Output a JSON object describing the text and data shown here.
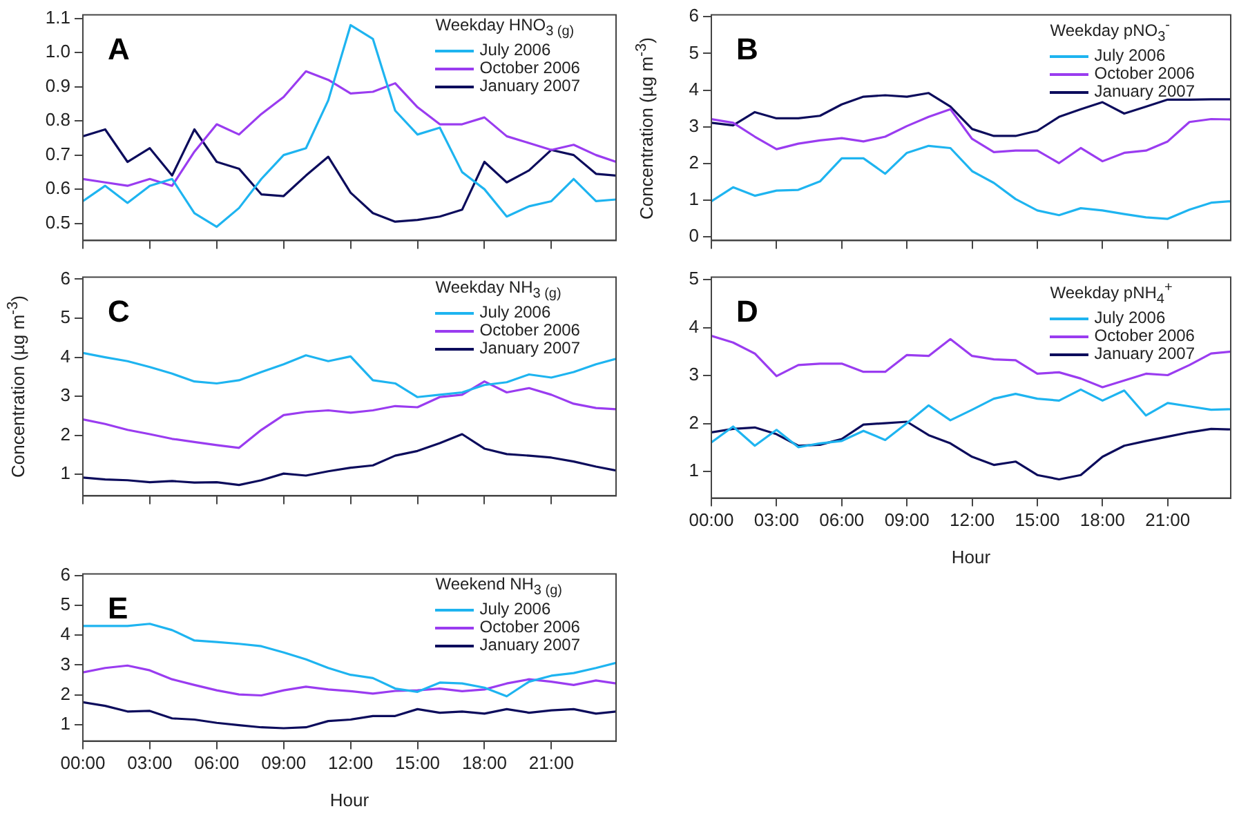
{
  "chart_data": [
    {
      "type": "line",
      "title": "A",
      "legend_title": "Weekday HNO$_{3 (g)}$",
      "legend": "top right",
      "marker": "none",
      "line_style": "solid",
      "grid": false,
      "tick_labels": "y",
      "x": [
        0,
        1,
        2,
        3,
        4,
        5,
        6,
        7,
        8,
        9,
        10,
        11,
        12,
        13,
        14,
        15,
        16,
        17,
        18,
        19,
        20,
        21,
        22,
        23,
        23.9
      ],
      "xlim": [
        0,
        23.9
      ],
      "xticks": [
        {
          "value": 0,
          "label": null
        },
        {
          "value": 3,
          "label": null
        },
        {
          "value": 6,
          "label": null
        },
        {
          "value": 9,
          "label": null
        },
        {
          "value": 12,
          "label": null
        },
        {
          "value": 15,
          "label": null
        },
        {
          "value": 18,
          "label": null
        },
        {
          "value": 21,
          "label": null
        }
      ],
      "ylim": [
        0.45,
        1.11
      ],
      "yticks": [
        0.5,
        0.6,
        0.7,
        0.8,
        0.9,
        {
          "value": 1,
          "label": "1.0"
        },
        1.1
      ],
      "series": [
        {
          "name": "July 2006",
          "color": "#1eb4f0",
          "values": [
            0.565,
            0.61,
            0.56,
            0.61,
            0.63,
            0.53,
            0.49,
            0.545,
            0.63,
            0.7,
            0.72,
            0.86,
            1.08,
            1.04,
            0.83,
            0.76,
            0.78,
            0.65,
            0.6,
            0.52,
            0.55,
            0.565,
            0.63,
            0.565,
            0.57
          ]
        },
        {
          "name": "October 2006",
          "color": "#9a3cf0",
          "values": [
            0.63,
            0.62,
            0.61,
            0.63,
            0.61,
            0.71,
            0.79,
            0.76,
            0.82,
            0.87,
            0.945,
            0.92,
            0.88,
            0.885,
            0.91,
            0.84,
            0.79,
            0.79,
            0.81,
            0.755,
            0.735,
            0.715,
            0.73,
            0.7,
            0.68
          ]
        },
        {
          "name": "January 2007",
          "color": "#0c0c5c",
          "values": [
            0.755,
            0.775,
            0.68,
            0.72,
            0.64,
            0.775,
            0.68,
            0.66,
            0.585,
            0.58,
            0.64,
            0.695,
            0.59,
            0.53,
            0.505,
            0.51,
            0.52,
            0.54,
            0.68,
            0.62,
            0.655,
            0.715,
            0.7,
            0.645,
            0.64
          ]
        }
      ]
    },
    {
      "type": "line",
      "title": "B",
      "legend_title": "Weekday pNO$_{3}$$^{-}$",
      "ylabel": "Concentration (µg m$^{-3}$)",
      "legend": "top right",
      "marker": "none",
      "line_style": "solid",
      "grid": false,
      "tick_labels": "y",
      "x": [
        0,
        1,
        2,
        3,
        4,
        5,
        6,
        7,
        8,
        9,
        10,
        11,
        12,
        13,
        14,
        15,
        16,
        17,
        18,
        19,
        20,
        21,
        22,
        23,
        23.9
      ],
      "xlim": [
        0,
        23.9
      ],
      "xticks": [
        {
          "value": 0,
          "label": null
        },
        {
          "value": 3,
          "label": null
        },
        {
          "value": 6,
          "label": null
        },
        {
          "value": 9,
          "label": null
        },
        {
          "value": 12,
          "label": null
        },
        {
          "value": 15,
          "label": null
        },
        {
          "value": 18,
          "label": null
        },
        {
          "value": 21,
          "label": null
        }
      ],
      "ylim": [
        -0.1,
        6.05
      ],
      "yticks": [
        0,
        1,
        2,
        3,
        4,
        5,
        6
      ],
      "series": [
        {
          "name": "July 2006",
          "color": "#1eb4f0",
          "values": [
            0.97,
            1.35,
            1.12,
            1.26,
            1.28,
            1.51,
            2.14,
            2.14,
            1.72,
            2.29,
            2.48,
            2.42,
            1.79,
            1.47,
            1.03,
            0.72,
            0.59,
            0.78,
            0.72,
            0.62,
            0.53,
            0.49,
            0.74,
            0.93,
            0.97
          ]
        },
        {
          "name": "October 2006",
          "color": "#9a3cf0",
          "values": [
            3.21,
            3.11,
            2.73,
            2.39,
            2.54,
            2.63,
            2.69,
            2.6,
            2.73,
            3.02,
            3.27,
            3.48,
            2.67,
            2.31,
            2.35,
            2.35,
            2.01,
            2.42,
            2.06,
            2.29,
            2.35,
            2.6,
            3.13,
            3.21,
            3.2
          ]
        },
        {
          "name": "January 2007",
          "color": "#0c0c5c",
          "values": [
            3.11,
            3.04,
            3.4,
            3.23,
            3.23,
            3.3,
            3.61,
            3.82,
            3.86,
            3.82,
            3.92,
            3.55,
            2.94,
            2.75,
            2.75,
            2.89,
            3.27,
            3.48,
            3.67,
            3.36,
            3.55,
            3.74,
            3.74,
            3.75,
            3.75
          ]
        }
      ]
    },
    {
      "type": "line",
      "title": "C",
      "legend_title": "Weekday NH$_{3 (g)}$",
      "ylabel": "Concentration (µg m$^{-3}$)",
      "legend": "top right",
      "marker": "none",
      "line_style": "solid",
      "grid": false,
      "tick_labels": "y",
      "x": [
        0,
        1,
        2,
        3,
        4,
        5,
        6,
        7,
        8,
        9,
        10,
        11,
        12,
        13,
        14,
        15,
        16,
        17,
        18,
        19,
        20,
        21,
        22,
        23,
        23.9
      ],
      "xlim": [
        0,
        23.9
      ],
      "xticks": [
        {
          "value": 0,
          "label": null
        },
        {
          "value": 3,
          "label": null
        },
        {
          "value": 6,
          "label": null
        },
        {
          "value": 9,
          "label": null
        },
        {
          "value": 12,
          "label": null
        },
        {
          "value": 15,
          "label": null
        },
        {
          "value": 18,
          "label": null
        },
        {
          "value": 21,
          "label": null
        }
      ],
      "ylim": [
        0.45,
        6.05
      ],
      "yticks": [
        1,
        2,
        3,
        4,
        5,
        6
      ],
      "series": [
        {
          "name": "July 2006",
          "color": "#1eb4f0",
          "values": [
            4.11,
            4.0,
            3.9,
            3.75,
            3.58,
            3.38,
            3.33,
            3.41,
            3.62,
            3.82,
            4.05,
            3.9,
            4.02,
            3.41,
            3.33,
            2.98,
            3.04,
            3.1,
            3.29,
            3.36,
            3.56,
            3.48,
            3.62,
            3.82,
            3.96
          ]
        },
        {
          "name": "October 2006",
          "color": "#9a3cf0",
          "values": [
            2.41,
            2.29,
            2.14,
            2.03,
            1.91,
            1.83,
            1.75,
            1.68,
            2.14,
            2.52,
            2.6,
            2.64,
            2.58,
            2.64,
            2.75,
            2.72,
            2.98,
            3.04,
            3.38,
            3.1,
            3.21,
            3.04,
            2.81,
            2.7,
            2.67
          ]
        },
        {
          "name": "January 2007",
          "color": "#0c0c5c",
          "values": [
            0.92,
            0.87,
            0.85,
            0.8,
            0.83,
            0.79,
            0.8,
            0.73,
            0.85,
            1.02,
            0.97,
            1.08,
            1.17,
            1.23,
            1.48,
            1.6,
            1.8,
            2.03,
            1.66,
            1.52,
            1.48,
            1.43,
            1.33,
            1.2,
            1.1
          ]
        }
      ]
    },
    {
      "type": "line",
      "title": "D",
      "legend_title": "Weekday pNH$_{4}$$^{+}$",
      "xlabel": "Hour",
      "legend": "top right",
      "marker": "none",
      "line_style": "solid",
      "grid": false,
      "x": [
        0,
        1,
        2,
        3,
        4,
        5,
        6,
        7,
        8,
        9,
        10,
        11,
        12,
        13,
        14,
        15,
        16,
        17,
        18,
        19,
        20,
        21,
        22,
        23,
        23.9
      ],
      "xlim": [
        0,
        23.9
      ],
      "xticks": [
        {
          "value": 0,
          "label": "00:00"
        },
        {
          "value": 3,
          "label": "03:00"
        },
        {
          "value": 6,
          "label": "06:00"
        },
        {
          "value": 9,
          "label": "09:00"
        },
        {
          "value": 12,
          "label": "12:00"
        },
        {
          "value": 15,
          "label": "15:00"
        },
        {
          "value": 18,
          "label": "18:00"
        },
        {
          "value": 21,
          "label": "21:00"
        }
      ],
      "ylim": [
        0.45,
        5.05
      ],
      "yticks": [
        1,
        2,
        3,
        4,
        5
      ],
      "series": [
        {
          "name": "July 2006",
          "color": "#1eb4f0",
          "values": [
            1.61,
            1.94,
            1.54,
            1.87,
            1.51,
            1.59,
            1.64,
            1.85,
            1.66,
            2.01,
            2.38,
            2.07,
            2.29,
            2.52,
            2.62,
            2.52,
            2.48,
            2.71,
            2.48,
            2.69,
            2.17,
            2.43,
            2.36,
            2.29,
            2.3
          ]
        },
        {
          "name": "October 2006",
          "color": "#9a3cf0",
          "values": [
            3.83,
            3.69,
            3.46,
            2.99,
            3.22,
            3.25,
            3.25,
            3.08,
            3.08,
            3.43,
            3.41,
            3.76,
            3.41,
            3.34,
            3.32,
            3.04,
            3.07,
            2.94,
            2.76,
            2.9,
            3.04,
            3.01,
            3.22,
            3.46,
            3.5
          ]
        },
        {
          "name": "January 2007",
          "color": "#0c0c5c",
          "values": [
            1.82,
            1.89,
            1.92,
            1.78,
            1.54,
            1.56,
            1.68,
            1.98,
            2.01,
            2.04,
            1.76,
            1.59,
            1.31,
            1.14,
            1.21,
            0.93,
            0.84,
            0.93,
            1.31,
            1.54,
            1.64,
            1.73,
            1.82,
            1.89,
            1.88
          ]
        }
      ]
    },
    {
      "type": "line",
      "title": "E",
      "legend_title": "Weekend NH$_{3 (g)}$",
      "xlabel": "Hour",
      "legend": "top right",
      "marker": "none",
      "line_style": "solid",
      "grid": false,
      "x": [
        0,
        1,
        2,
        3,
        4,
        5,
        6,
        7,
        8,
        9,
        10,
        11,
        12,
        13,
        14,
        15,
        16,
        17,
        18,
        19,
        20,
        21,
        22,
        23,
        23.9
      ],
      "xlim": [
        0,
        23.9
      ],
      "xticks": [
        {
          "value": 0,
          "label": "00:00"
        },
        {
          "value": 3,
          "label": "03:00"
        },
        {
          "value": 6,
          "label": "06:00"
        },
        {
          "value": 9,
          "label": "09:00"
        },
        {
          "value": 12,
          "label": "12:00"
        },
        {
          "value": 15,
          "label": "15:00"
        },
        {
          "value": 18,
          "label": "18:00"
        },
        {
          "value": 21,
          "label": "21:00"
        }
      ],
      "ylim": [
        0.45,
        6.05
      ],
      "yticks": [
        1,
        2,
        3,
        4,
        5,
        6
      ],
      "series": [
        {
          "name": "July 2006",
          "color": "#1eb4f0",
          "values": [
            4.31,
            4.31,
            4.31,
            4.38,
            4.17,
            3.82,
            3.77,
            3.71,
            3.63,
            3.42,
            3.19,
            2.9,
            2.67,
            2.56,
            2.21,
            2.1,
            2.41,
            2.38,
            2.24,
            1.95,
            2.44,
            2.64,
            2.73,
            2.9,
            3.07
          ]
        },
        {
          "name": "October 2006",
          "color": "#9a3cf0",
          "values": [
            2.75,
            2.9,
            2.98,
            2.82,
            2.52,
            2.33,
            2.15,
            2.01,
            1.98,
            2.15,
            2.27,
            2.18,
            2.12,
            2.04,
            2.13,
            2.15,
            2.21,
            2.12,
            2.18,
            2.38,
            2.52,
            2.44,
            2.33,
            2.48,
            2.38
          ]
        },
        {
          "name": "January 2007",
          "color": "#0c0c5c",
          "values": [
            1.75,
            1.63,
            1.44,
            1.46,
            1.21,
            1.17,
            1.06,
            0.98,
            0.91,
            0.88,
            0.91,
            1.12,
            1.17,
            1.29,
            1.29,
            1.52,
            1.4,
            1.44,
            1.37,
            1.52,
            1.4,
            1.48,
            1.52,
            1.37,
            1.44
          ]
        }
      ]
    }
  ]
}
